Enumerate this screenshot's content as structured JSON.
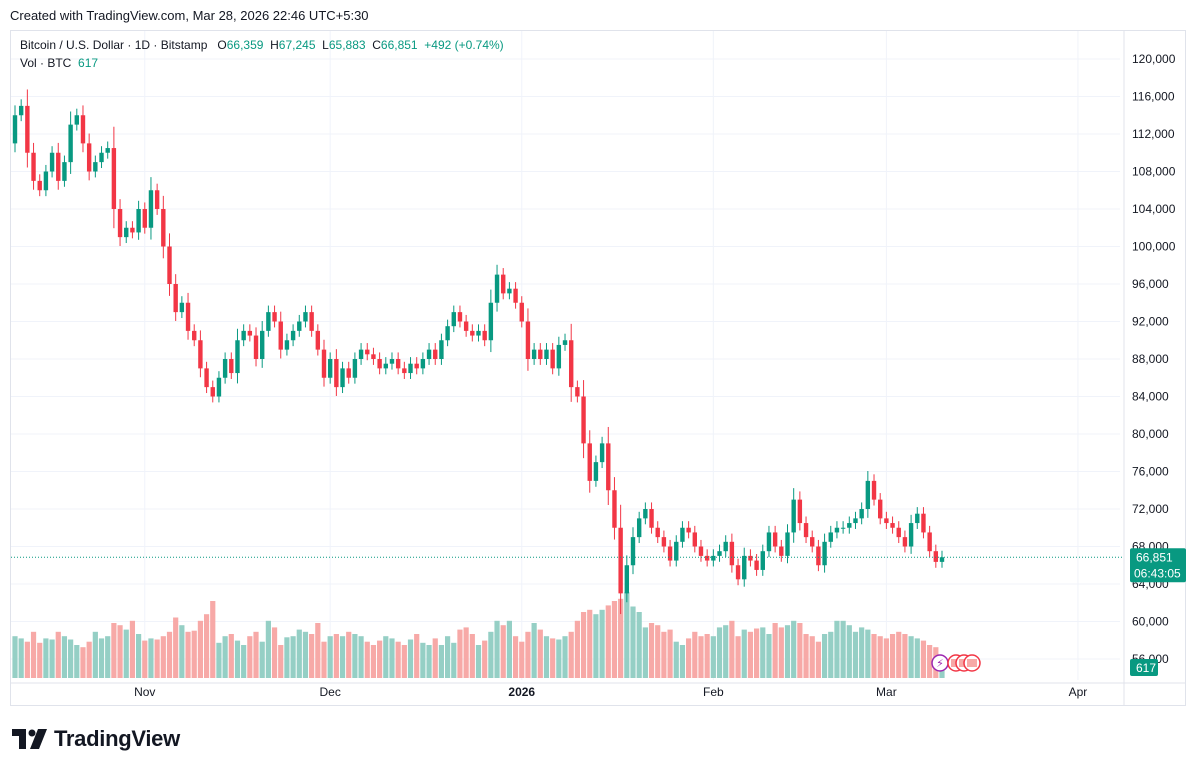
{
  "header": {
    "created": "Created with TradingView.com, Mar 28, 2026 22:46 UTC+5:30"
  },
  "legend": {
    "symbol": "Bitcoin / U.S. Dollar · 1D · Bitstamp",
    "o_label": "O",
    "o": "66,359",
    "h_label": "H",
    "h": "67,245",
    "l_label": "L",
    "l": "65,883",
    "c_label": "C",
    "c": "66,851",
    "change": "+492 (+0.74%)",
    "vol_label": "Vol · BTC",
    "vol": "617"
  },
  "badges": {
    "price": "66,851",
    "countdown": "06:43:05",
    "volume": "617"
  },
  "brand": {
    "name": "TradingView"
  },
  "colors": {
    "up": "#089981",
    "down": "#f23645",
    "vol_up": "#95cfc5",
    "vol_down": "#f7a9a7",
    "grid": "#f0f3fa",
    "text": "#131722"
  },
  "chart_data": {
    "type": "candlestick",
    "title": "Bitcoin / U.S. Dollar · 1D · Bitstamp",
    "ylim": [
      52000,
      122000
    ],
    "yticks": [
      120000,
      116000,
      112000,
      108000,
      104000,
      100000,
      96000,
      92000,
      88000,
      84000,
      80000,
      76000,
      72000,
      68000,
      64000,
      60000,
      56000
    ],
    "ytick_labels": [
      "120,000",
      "116,000",
      "112,000",
      "108,000",
      "104,000",
      "100,000",
      "96,000",
      "92,000",
      "88,000",
      "84,000",
      "80,000",
      "76,000",
      "72,000",
      "68,000",
      "64,000",
      "60,000",
      "56,000"
    ],
    "xticks": [
      {
        "label": "Nov",
        "index": 21,
        "bold": false
      },
      {
        "label": "Dec",
        "index": 51,
        "bold": false
      },
      {
        "label": "2026",
        "index": 82,
        "bold": true
      },
      {
        "label": "Feb",
        "index": 113,
        "bold": false
      },
      {
        "label": "Mar",
        "index": 141,
        "bold": false
      },
      {
        "label": "Apr",
        "index": 172,
        "bold": false
      }
    ],
    "last_price": 66851,
    "closes": [
      114000,
      115000,
      110000,
      107000,
      106000,
      108000,
      110000,
      107000,
      109000,
      113000,
      114000,
      111000,
      108000,
      109000,
      110000,
      110500,
      104000,
      101000,
      102000,
      101500,
      104000,
      102000,
      106000,
      104000,
      100000,
      96000,
      93000,
      94000,
      91000,
      90000,
      87000,
      85000,
      84000,
      86000,
      88000,
      86500,
      90000,
      91000,
      90500,
      88000,
      91000,
      93000,
      92000,
      89000,
      90000,
      91000,
      92000,
      93000,
      91000,
      89000,
      86000,
      88000,
      85000,
      87000,
      86000,
      88000,
      89000,
      88500,
      88000,
      87000,
      87500,
      88000,
      87000,
      86500,
      87500,
      87000,
      88000,
      89000,
      88000,
      90000,
      91500,
      93000,
      92000,
      91000,
      90500,
      91000,
      90000,
      94000,
      97000,
      95000,
      95500,
      94000,
      92000,
      88000,
      89000,
      88000,
      89000,
      87000,
      89500,
      90000,
      85000,
      84000,
      79000,
      75000,
      77000,
      79000,
      74000,
      70000,
      63000,
      66000,
      69000,
      71000,
      72000,
      70000,
      69000,
      68000,
      66500,
      68500,
      70000,
      69500,
      68000,
      67000,
      66500,
      67000,
      67500,
      68500,
      66000,
      64500,
      67000,
      66500,
      65500,
      67500,
      69500,
      68000,
      67000,
      69500,
      73000,
      70500,
      69000,
      68000,
      66000,
      68500,
      69500,
      70000,
      70000,
      70500,
      71000,
      72000,
      75000,
      73000,
      71000,
      70500,
      70000,
      69000,
      68000,
      70500,
      71500,
      69500,
      67500,
      66359,
      66851
    ],
    "opens_from_prev_close": true,
    "first_open": 111000,
    "volume_rel": [
      0.38,
      0.36,
      0.33,
      0.42,
      0.32,
      0.36,
      0.35,
      0.42,
      0.38,
      0.35,
      0.3,
      0.28,
      0.33,
      0.42,
      0.36,
      0.38,
      0.5,
      0.48,
      0.44,
      0.52,
      0.4,
      0.34,
      0.36,
      0.35,
      0.38,
      0.42,
      0.55,
      0.48,
      0.42,
      0.43,
      0.52,
      0.58,
      0.7,
      0.32,
      0.38,
      0.4,
      0.34,
      0.3,
      0.38,
      0.42,
      0.33,
      0.52,
      0.46,
      0.3,
      0.37,
      0.38,
      0.44,
      0.42,
      0.4,
      0.5,
      0.33,
      0.38,
      0.4,
      0.38,
      0.42,
      0.4,
      0.38,
      0.33,
      0.3,
      0.34,
      0.38,
      0.36,
      0.33,
      0.3,
      0.35,
      0.4,
      0.32,
      0.3,
      0.36,
      0.3,
      0.38,
      0.32,
      0.44,
      0.46,
      0.4,
      0.3,
      0.34,
      0.42,
      0.52,
      0.48,
      0.52,
      0.38,
      0.33,
      0.42,
      0.5,
      0.44,
      0.38,
      0.36,
      0.35,
      0.38,
      0.42,
      0.52,
      0.6,
      0.62,
      0.58,
      0.62,
      0.66,
      0.7,
      0.72,
      0.78,
      0.65,
      0.6,
      0.46,
      0.5,
      0.48,
      0.42,
      0.44,
      0.33,
      0.3,
      0.36,
      0.42,
      0.38,
      0.4,
      0.38,
      0.46,
      0.48,
      0.52,
      0.38,
      0.44,
      0.42,
      0.45,
      0.46,
      0.4,
      0.5,
      0.46,
      0.48,
      0.52,
      0.5,
      0.4,
      0.38,
      0.33,
      0.4,
      0.42,
      0.52,
      0.52,
      0.48,
      0.42,
      0.46,
      0.44,
      0.4,
      0.38,
      0.36,
      0.4,
      0.42,
      0.4,
      0.38,
      0.36,
      0.34,
      0.3,
      0.28,
      0.1
    ]
  }
}
